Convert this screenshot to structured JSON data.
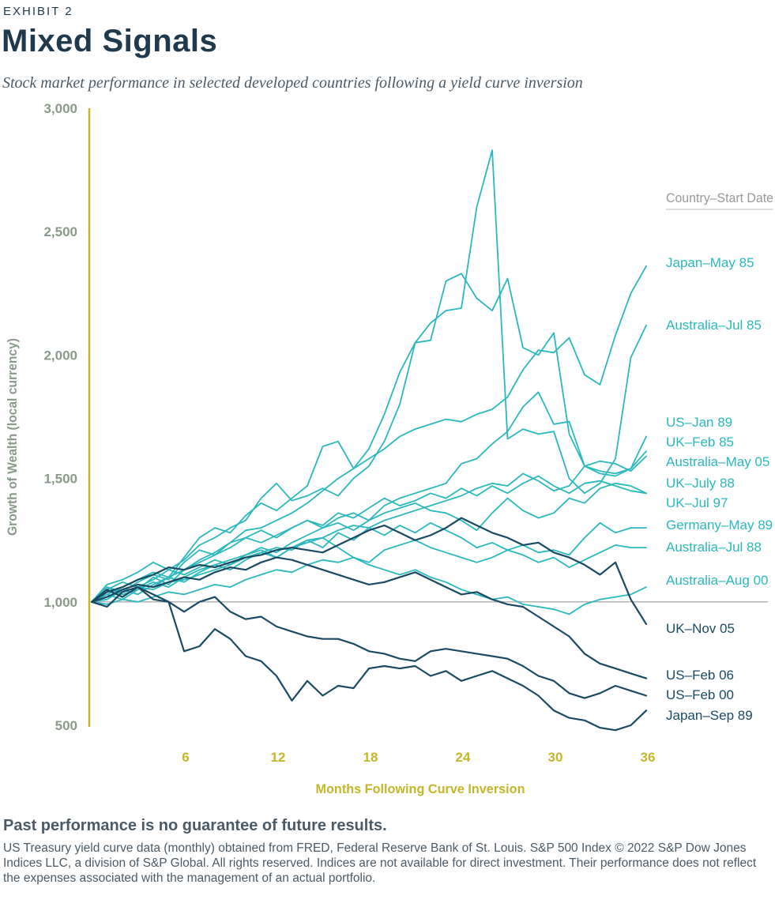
{
  "header": {
    "exhibit": "EXHIBIT 2",
    "title": "Mixed Signals",
    "subtitle": "Stock market performance in selected developed countries following a yield curve inversion"
  },
  "footer": {
    "disclaimer": "Past performance is no guarantee of future results.",
    "notes": "US Treasury yield curve data (monthly) obtained from FRED, Federal Reserve Bank of St. Louis. S&P 500 Index © 2022 S&P Dow Jones Indices LLC, a division of S&P Global. All rights reserved. Indices are not available for direct investment. Their performance does not reflect the expenses associated with the management of an actual portfolio."
  },
  "colors": {
    "teal": "#2ab8bd",
    "navy": "#1a4a63",
    "axis": "#c4b62a",
    "tick_y": "#8a9a88",
    "baseline": "#b3b3b3"
  },
  "chart_data": {
    "type": "line",
    "xlabel": "Months Following Curve Inversion",
    "ylabel": "Growth of Wealth (local currency)",
    "xlim": [
      0,
      36
    ],
    "ylim": [
      500,
      3000
    ],
    "xticks": [
      6,
      12,
      18,
      24,
      30,
      36
    ],
    "yticks": [
      500,
      1000,
      1500,
      2000,
      2500,
      3000
    ],
    "ytick_labels": [
      "500",
      "1,000",
      "1,500",
      "2,000",
      "2,500",
      "3,000"
    ],
    "baseline": 1000,
    "legend_title": "Country–Start Date",
    "series": [
      {
        "name": "Japan–May 85",
        "color": "#2ab8bd",
        "values": [
          1000,
          1060,
          1040,
          1080,
          1110,
          1090,
          1160,
          1210,
          1190,
          1240,
          1290,
          1300,
          1330,
          1360,
          1400,
          1450,
          1500,
          1540,
          1580,
          1620,
          1670,
          1700,
          1720,
          1740,
          1730,
          1760,
          1780,
          1830,
          1940,
          2020,
          2010,
          2070,
          1920,
          1880,
          2080,
          2250,
          2360
        ]
      },
      {
        "name": "Australia–Jul 85",
        "color": "#2ab8bd",
        "values": [
          1000,
          1030,
          1060,
          1090,
          1120,
          1100,
          1180,
          1260,
          1300,
          1280,
          1350,
          1400,
          1370,
          1420,
          1470,
          1630,
          1650,
          1540,
          1620,
          1760,
          1930,
          2050,
          2130,
          2180,
          2190,
          2600,
          2830,
          1660,
          1700,
          1680,
          1690,
          1500,
          1440,
          1480,
          1580,
          1990,
          2120
        ]
      },
      {
        "name": "US–Jan 89",
        "color": "#2ab8bd",
        "values": [
          1000,
          1040,
          1050,
          1070,
          1060,
          1100,
          1130,
          1170,
          1200,
          1240,
          1260,
          1290,
          1260,
          1300,
          1330,
          1300,
          1340,
          1360,
          1330,
          1390,
          1420,
          1440,
          1460,
          1480,
          1560,
          1580,
          1640,
          1690,
          1790,
          1850,
          1720,
          1730,
          1550,
          1520,
          1510,
          1540,
          1670
        ]
      },
      {
        "name": "UK–Feb 85",
        "color": "#2ab8bd",
        "values": [
          1000,
          1070,
          1090,
          1120,
          1160,
          1130,
          1170,
          1230,
          1260,
          1300,
          1330,
          1420,
          1480,
          1410,
          1430,
          1460,
          1430,
          1500,
          1550,
          1650,
          1800,
          2050,
          2060,
          2300,
          2330,
          2230,
          2180,
          2310,
          2030,
          2000,
          2090,
          1680,
          1550,
          1530,
          1520,
          1540,
          1610
        ]
      },
      {
        "name": "Australia–May 05",
        "color": "#2ab8bd",
        "values": [
          1000,
          1020,
          1040,
          1060,
          1050,
          1080,
          1090,
          1110,
          1130,
          1150,
          1180,
          1200,
          1220,
          1210,
          1250,
          1260,
          1290,
          1310,
          1300,
          1330,
          1350,
          1370,
          1390,
          1410,
          1430,
          1460,
          1480,
          1470,
          1520,
          1490,
          1450,
          1470,
          1550,
          1570,
          1560,
          1530,
          1590
        ]
      },
      {
        "name": "UK–July 88",
        "color": "#2ab8bd",
        "values": [
          1000,
          1060,
          1030,
          1050,
          1100,
          1070,
          1130,
          1160,
          1190,
          1220,
          1260,
          1240,
          1270,
          1300,
          1330,
          1310,
          1360,
          1340,
          1380,
          1420,
          1390,
          1410,
          1440,
          1420,
          1460,
          1430,
          1470,
          1440,
          1480,
          1510,
          1470,
          1440,
          1480,
          1490,
          1470,
          1450,
          1440
        ]
      },
      {
        "name": "UK–Jul 97",
        "color": "#2ab8bd",
        "values": [
          1000,
          1050,
          1080,
          1060,
          1090,
          1130,
          1110,
          1140,
          1170,
          1150,
          1190,
          1220,
          1200,
          1240,
          1270,
          1300,
          1320,
          1290,
          1330,
          1360,
          1380,
          1400,
          1370,
          1360,
          1330,
          1290,
          1360,
          1420,
          1370,
          1340,
          1360,
          1420,
          1400,
          1460,
          1480,
          1470,
          1440
        ]
      },
      {
        "name": "Germany–May 89",
        "color": "#2ab8bd",
        "values": [
          1000,
          1030,
          1010,
          1050,
          1080,
          1060,
          1100,
          1130,
          1150,
          1170,
          1190,
          1210,
          1180,
          1220,
          1250,
          1220,
          1280,
          1250,
          1300,
          1270,
          1310,
          1280,
          1320,
          1290,
          1260,
          1220,
          1240,
          1210,
          1230,
          1200,
          1210,
          1190,
          1260,
          1320,
          1280,
          1300,
          1300
        ]
      },
      {
        "name": "Australia–Jul 88",
        "color": "#2ab8bd",
        "values": [
          1000,
          1010,
          1050,
          1030,
          1070,
          1100,
          1080,
          1120,
          1150,
          1130,
          1170,
          1200,
          1180,
          1220,
          1240,
          1260,
          1220,
          1180,
          1160,
          1210,
          1230,
          1250,
          1220,
          1200,
          1180,
          1160,
          1180,
          1210,
          1190,
          1160,
          1180,
          1140,
          1170,
          1200,
          1230,
          1220,
          1220
        ]
      },
      {
        "name": "Australia–Aug 00",
        "color": "#2ab8bd",
        "values": [
          1000,
          990,
          1010,
          1000,
          1020,
          1040,
          1030,
          1050,
          1070,
          1060,
          1090,
          1110,
          1130,
          1120,
          1150,
          1170,
          1160,
          1180,
          1150,
          1130,
          1110,
          1130,
          1100,
          1080,
          1050,
          1030,
          1010,
          1020,
          990,
          980,
          970,
          950,
          990,
          1010,
          1020,
          1030,
          1060
        ]
      },
      {
        "name": "UK–Nov 05",
        "color": "#1a4a63",
        "values": [
          1000,
          1040,
          1060,
          1090,
          1110,
          1140,
          1130,
          1150,
          1140,
          1160,
          1180,
          1190,
          1210,
          1220,
          1210,
          1200,
          1230,
          1260,
          1290,
          1310,
          1280,
          1250,
          1270,
          1300,
          1340,
          1310,
          1280,
          1260,
          1230,
          1240,
          1200,
          1180,
          1150,
          1110,
          1160,
          1010,
          910
        ]
      },
      {
        "name": "US–Feb 06",
        "color": "#1a4a63",
        "values": [
          1000,
          1020,
          1050,
          1070,
          1060,
          1080,
          1100,
          1090,
          1120,
          1140,
          1130,
          1160,
          1180,
          1170,
          1150,
          1130,
          1110,
          1090,
          1070,
          1080,
          1100,
          1120,
          1090,
          1060,
          1030,
          1040,
          1010,
          990,
          980,
          940,
          900,
          860,
          790,
          750,
          730,
          710,
          690
        ]
      },
      {
        "name": "US–Feb 00",
        "color": "#1a4a63",
        "values": [
          1000,
          1050,
          1020,
          1060,
          1010,
          1000,
          960,
          1000,
          1020,
          960,
          930,
          940,
          900,
          880,
          860,
          850,
          850,
          830,
          800,
          790,
          770,
          760,
          800,
          810,
          800,
          790,
          780,
          770,
          740,
          700,
          680,
          630,
          610,
          630,
          660,
          640,
          620
        ]
      },
      {
        "name": "Japan–Sep 89",
        "color": "#1a4a63",
        "values": [
          1000,
          980,
          1040,
          1060,
          1030,
          1000,
          800,
          820,
          890,
          850,
          780,
          760,
          700,
          600,
          680,
          620,
          660,
          650,
          730,
          740,
          730,
          740,
          700,
          720,
          680,
          700,
          720,
          690,
          660,
          620,
          560,
          530,
          520,
          490,
          480,
          500,
          560
        ]
      }
    ]
  }
}
